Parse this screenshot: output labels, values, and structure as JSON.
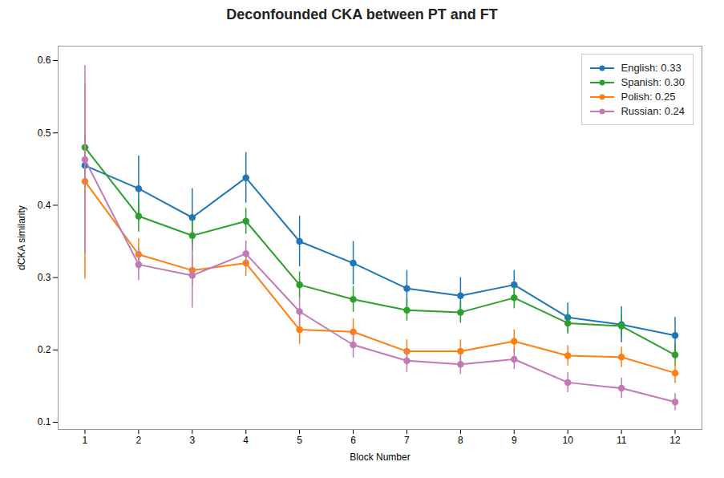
{
  "chart_data": {
    "type": "line",
    "title": "Deconfounded CKA between PT and FT",
    "xlabel": "Block Number",
    "ylabel": "dCKA similarity",
    "x": [
      1,
      2,
      3,
      4,
      5,
      6,
      7,
      8,
      9,
      10,
      11,
      12
    ],
    "series": [
      {
        "name": "English: 0.33",
        "color": "#1f77b4",
        "values": [
          0.455,
          0.423,
          0.383,
          0.438,
          0.35,
          0.32,
          0.285,
          0.275,
          0.29,
          0.245,
          0.235,
          0.22
        ],
        "yerr": [
          0.025,
          0.045,
          0.04,
          0.035,
          0.035,
          0.03,
          0.025,
          0.025,
          0.02,
          0.02,
          0.025,
          0.025
        ]
      },
      {
        "name": "Spanish: 0.30",
        "color": "#2ca02c",
        "values": [
          0.48,
          0.385,
          0.358,
          0.378,
          0.29,
          0.27,
          0.255,
          0.252,
          0.272,
          0.237,
          0.233,
          0.193
        ],
        "yerr": [
          0.018,
          0.022,
          0.022,
          0.018,
          0.018,
          0.018,
          0.015,
          0.015,
          0.015,
          0.015,
          0.015,
          0.015
        ]
      },
      {
        "name": "Polish: 0.25",
        "color": "#ff7f0e",
        "values": [
          0.433,
          0.332,
          0.31,
          0.32,
          0.228,
          0.225,
          0.198,
          0.198,
          0.212,
          0.192,
          0.19,
          0.168
        ],
        "yerr": [
          0.135,
          0.022,
          0.022,
          0.018,
          0.02,
          0.018,
          0.016,
          0.016,
          0.016,
          0.014,
          0.014,
          0.014
        ]
      },
      {
        "name": "Russian: 0.24",
        "color": "#c07ab8",
        "values": [
          0.463,
          0.318,
          0.303,
          0.333,
          0.253,
          0.207,
          0.185,
          0.18,
          0.187,
          0.155,
          0.147,
          0.128
        ],
        "yerr": [
          0.13,
          0.022,
          0.045,
          0.018,
          0.02,
          0.018,
          0.016,
          0.014,
          0.014,
          0.014,
          0.014,
          0.012
        ]
      }
    ],
    "xlim": [
      0.5,
      12.5
    ],
    "xticks": [
      1,
      2,
      3,
      4,
      5,
      6,
      7,
      8,
      9,
      10,
      11,
      12
    ],
    "ylim": [
      0.09,
      0.62
    ],
    "yticks": [
      0.1,
      0.2,
      0.3,
      0.4,
      0.5,
      0.6
    ],
    "marker": "circle",
    "legend": "upper right",
    "grid": false
  }
}
